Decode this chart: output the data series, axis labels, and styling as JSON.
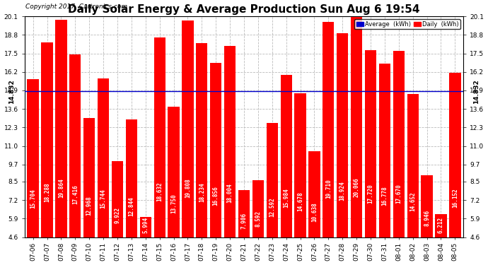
{
  "title": "Daily Solar Energy & Average Production Sun Aug 6 19:54",
  "copyright": "Copyright 2017  Cartronics.com",
  "average_label": "Average  (kWh)",
  "daily_label": "Daily  (kWh)",
  "average_value": 14.832,
  "categories": [
    "07-06",
    "07-07",
    "07-08",
    "07-09",
    "07-10",
    "07-11",
    "07-12",
    "07-13",
    "07-14",
    "07-15",
    "07-16",
    "07-17",
    "07-18",
    "07-19",
    "07-20",
    "07-21",
    "07-22",
    "07-23",
    "07-24",
    "07-25",
    "07-26",
    "07-27",
    "07-28",
    "07-29",
    "07-30",
    "07-31",
    "08-01",
    "08-02",
    "08-03",
    "08-04",
    "08-05"
  ],
  "values": [
    15.704,
    18.288,
    19.864,
    17.416,
    12.968,
    15.744,
    9.922,
    12.844,
    5.994,
    18.632,
    13.75,
    19.808,
    18.234,
    16.856,
    18.004,
    7.906,
    8.592,
    12.592,
    15.984,
    14.678,
    10.638,
    19.71,
    18.924,
    20.066,
    17.72,
    16.778,
    17.67,
    14.652,
    8.946,
    6.212,
    16.152
  ],
  "bar_color": "#ff0000",
  "avg_line_color": "#0000cd",
  "background_color": "#ffffff",
  "plot_bg_color": "#ffffff",
  "grid_color": "#bbbbbb",
  "ymin": 4.6,
  "ymax": 20.1,
  "yticks": [
    4.6,
    5.9,
    7.2,
    8.5,
    9.7,
    11.0,
    12.3,
    13.6,
    14.9,
    16.2,
    17.5,
    18.8,
    20.1
  ],
  "title_fontsize": 11,
  "copyright_fontsize": 6.5,
  "tick_fontsize": 6.5,
  "bar_label_fontsize": 5.5,
  "avg_text_color": "#000000",
  "bar_text_color": "#ffffff",
  "legend_avg_color": "#0000cc",
  "legend_daily_color": "#ff0000"
}
